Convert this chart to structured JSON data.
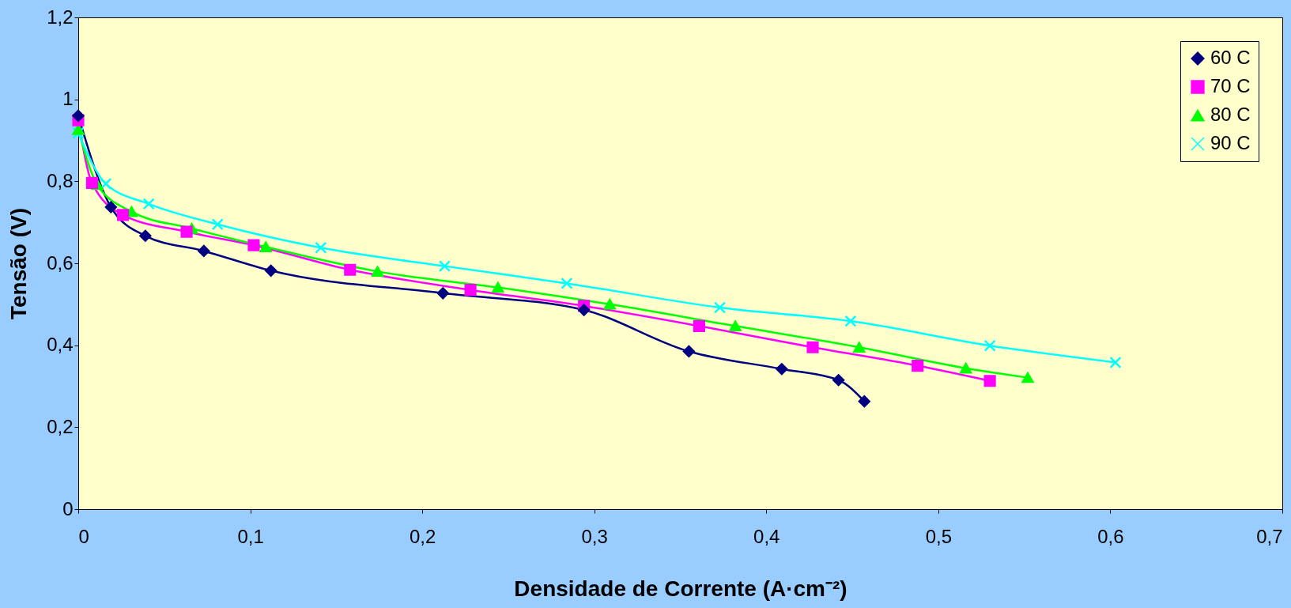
{
  "chart_data": {
    "type": "line",
    "xlabel": "Densidade de Corrente (A·cm⁻²)",
    "ylabel": "Tensão (V)",
    "xlim": [
      0,
      0.7
    ],
    "xticks": [
      {
        "value": 0,
        "label": "0"
      },
      {
        "value": 0.1,
        "label": "0,1"
      },
      {
        "value": 0.2,
        "label": "0,2"
      },
      {
        "value": 0.3,
        "label": "0,3"
      },
      {
        "value": 0.4,
        "label": "0,4"
      },
      {
        "value": 0.5,
        "label": "0,5"
      },
      {
        "value": 0.6,
        "label": "0,6"
      },
      {
        "value": 0.7,
        "label": "0,7"
      }
    ],
    "ylim": [
      0,
      1.2
    ],
    "yticks": [
      {
        "value": 0,
        "label": "0"
      },
      {
        "value": 0.2,
        "label": "0,2"
      },
      {
        "value": 0.4,
        "label": "0,4"
      },
      {
        "value": 0.6,
        "label": "0,6"
      },
      {
        "value": 0.8,
        "label": "0,8"
      },
      {
        "value": 1,
        "label": "1"
      },
      {
        "value": 1.2,
        "label": "1,2"
      }
    ],
    "grid": false,
    "legend": "top right",
    "line_style": "solid",
    "series": [
      {
        "name": "60 C",
        "color": "#000080",
        "marker": "diamond",
        "x": [
          0,
          0.019,
          0.039,
          0.073,
          0.112,
          0.212,
          0.294,
          0.355,
          0.409,
          0.442,
          0.457
        ],
        "values": [
          0.96,
          0.737,
          0.667,
          0.63,
          0.582,
          0.527,
          0.486,
          0.385,
          0.342,
          0.315,
          0.263
        ]
      },
      {
        "name": "70 C",
        "color": "#ff00ff",
        "marker": "square",
        "x": [
          0,
          0.008,
          0.026,
          0.063,
          0.102,
          0.158,
          0.228,
          0.294,
          0.361,
          0.427,
          0.488,
          0.53
        ],
        "values": [
          0.949,
          0.796,
          0.718,
          0.677,
          0.644,
          0.584,
          0.535,
          0.496,
          0.447,
          0.395,
          0.35,
          0.313
        ]
      },
      {
        "name": "80 C",
        "color": "#00ff00",
        "marker": "triangle",
        "x": [
          0,
          0.011,
          0.031,
          0.066,
          0.109,
          0.174,
          0.244,
          0.309,
          0.382,
          0.454,
          0.516,
          0.552
        ],
        "values": [
          0.926,
          0.792,
          0.726,
          0.685,
          0.64,
          0.58,
          0.541,
          0.5,
          0.447,
          0.395,
          0.344,
          0.321
        ]
      },
      {
        "name": "90 C",
        "color": "#00ffff",
        "marker": "cross",
        "x": [
          0,
          0.016,
          0.041,
          0.081,
          0.141,
          0.213,
          0.284,
          0.373,
          0.449,
          0.53,
          0.603
        ],
        "values": [
          0.918,
          0.794,
          0.745,
          0.695,
          0.638,
          0.593,
          0.551,
          0.492,
          0.459,
          0.399,
          0.358
        ]
      }
    ]
  }
}
